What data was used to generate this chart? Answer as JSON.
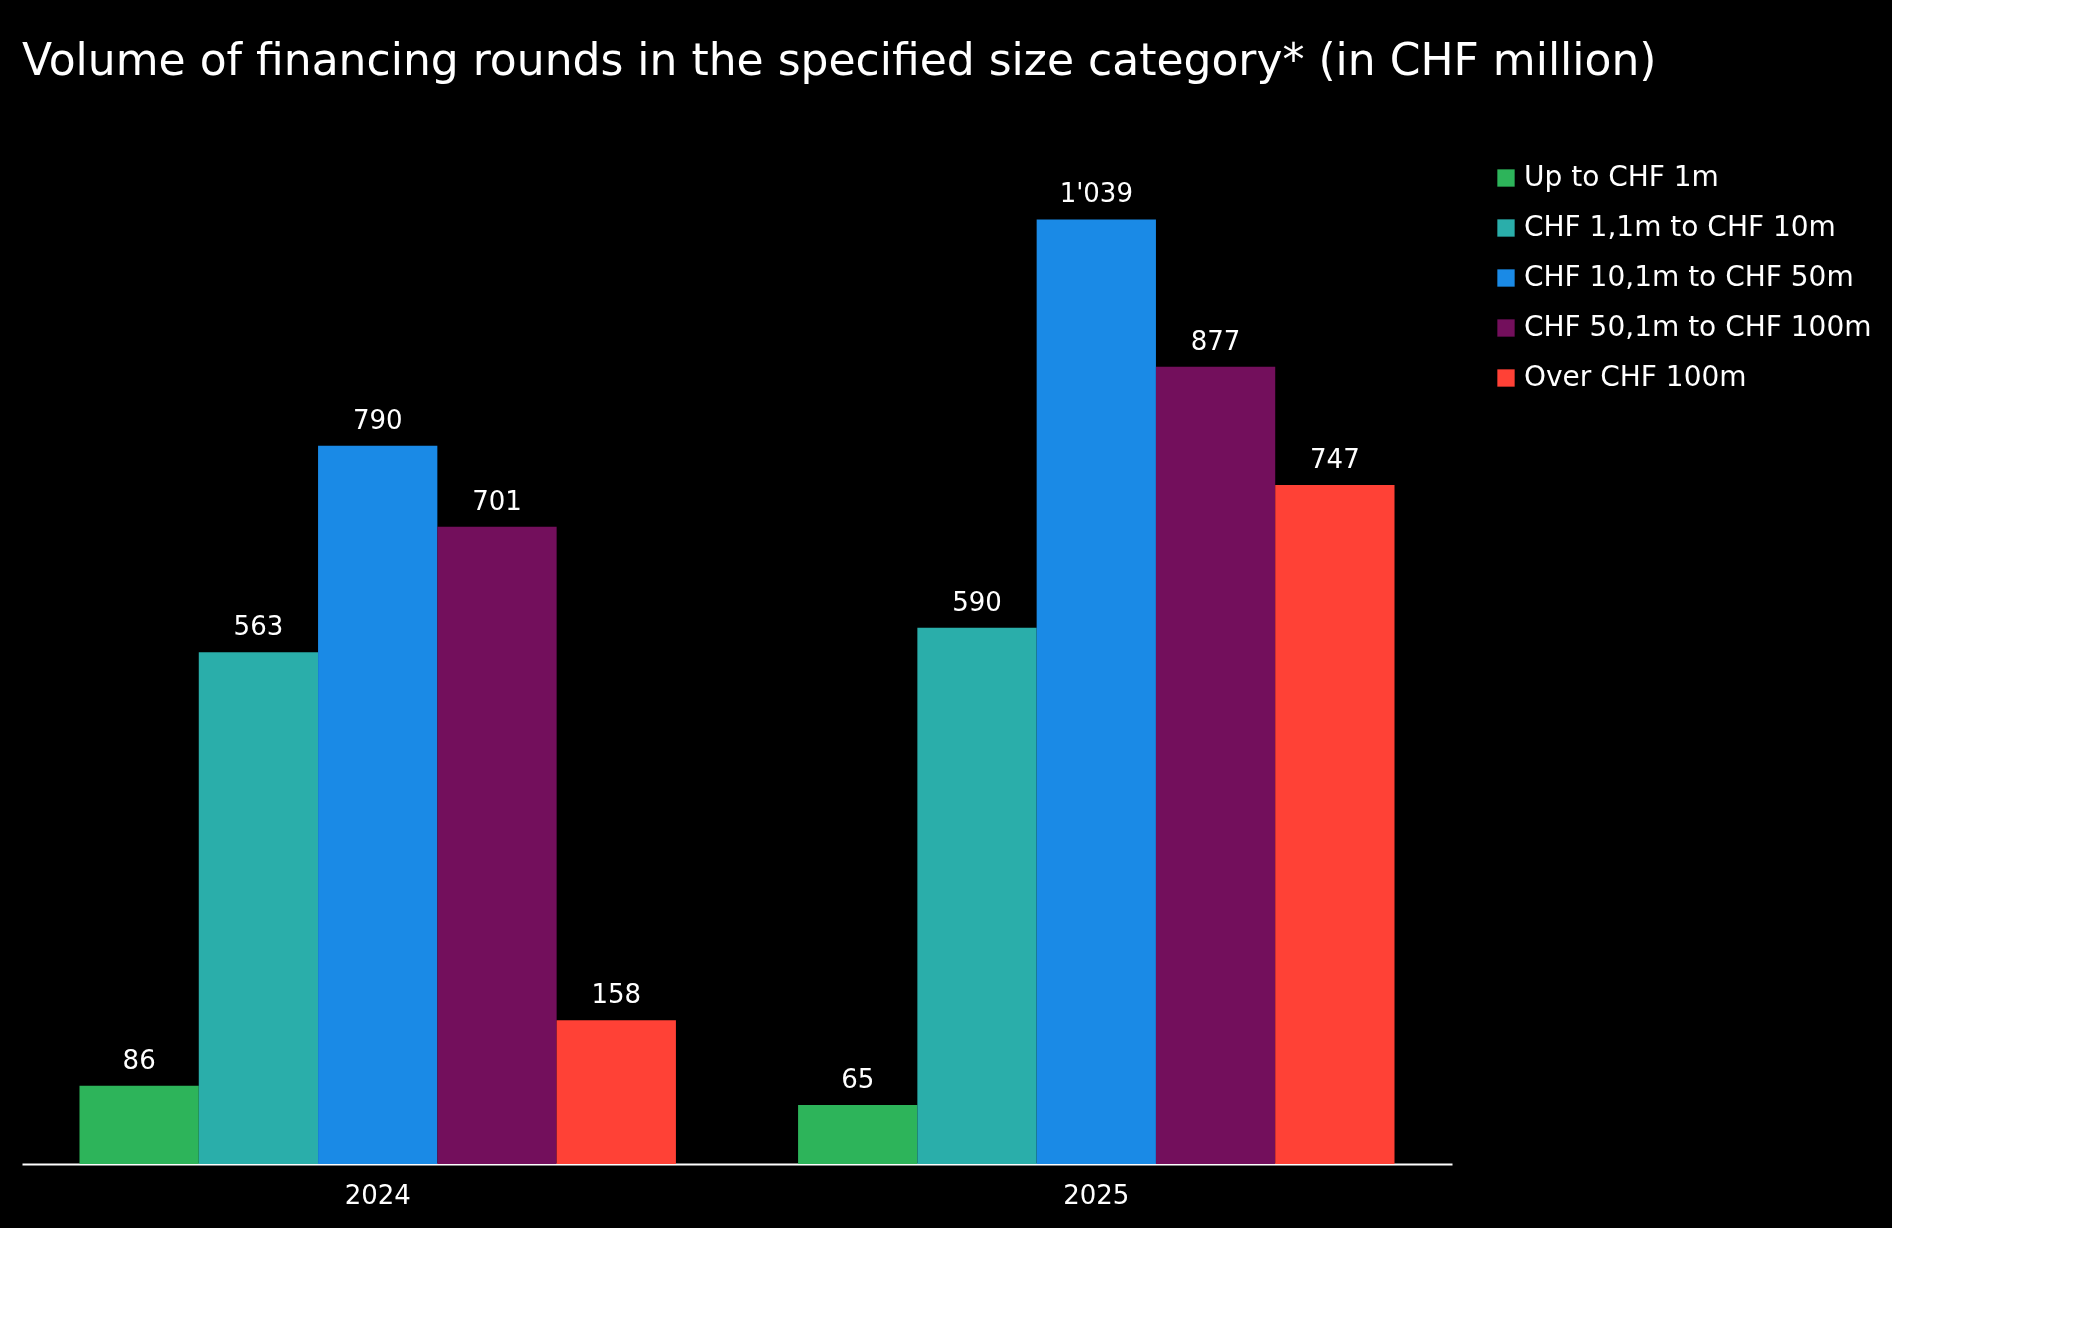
{
  "chart_data": {
    "type": "bar",
    "title": "Volume of financing rounds in the specified size category* (in CHF million)",
    "categories": [
      "2024",
      "2025"
    ],
    "series": [
      {
        "name": "Up to CHF 1m",
        "color": "#2db45a",
        "values": [
          86,
          65
        ],
        "value_labels": [
          "86",
          "65"
        ]
      },
      {
        "name": "CHF 1,1m to CHF 10m",
        "color": "#2aaeaa",
        "values": [
          563,
          590
        ],
        "value_labels": [
          "563",
          "590"
        ]
      },
      {
        "name": "CHF 10,1m to CHF 50m",
        "color": "#1a8ae6",
        "values": [
          790,
          1039
        ],
        "value_labels": [
          "790",
          "1'039"
        ]
      },
      {
        "name": "CHF 50,1m to CHF 100m",
        "color": "#730f5c",
        "values": [
          701,
          877
        ],
        "value_labels": [
          "701",
          "877"
        ]
      },
      {
        "name": "Over CHF 100m",
        "color": "#ff4136",
        "values": [
          158,
          747
        ],
        "value_labels": [
          "158",
          "747"
        ]
      }
    ],
    "legend": "right",
    "tick_labels": "x"
  }
}
